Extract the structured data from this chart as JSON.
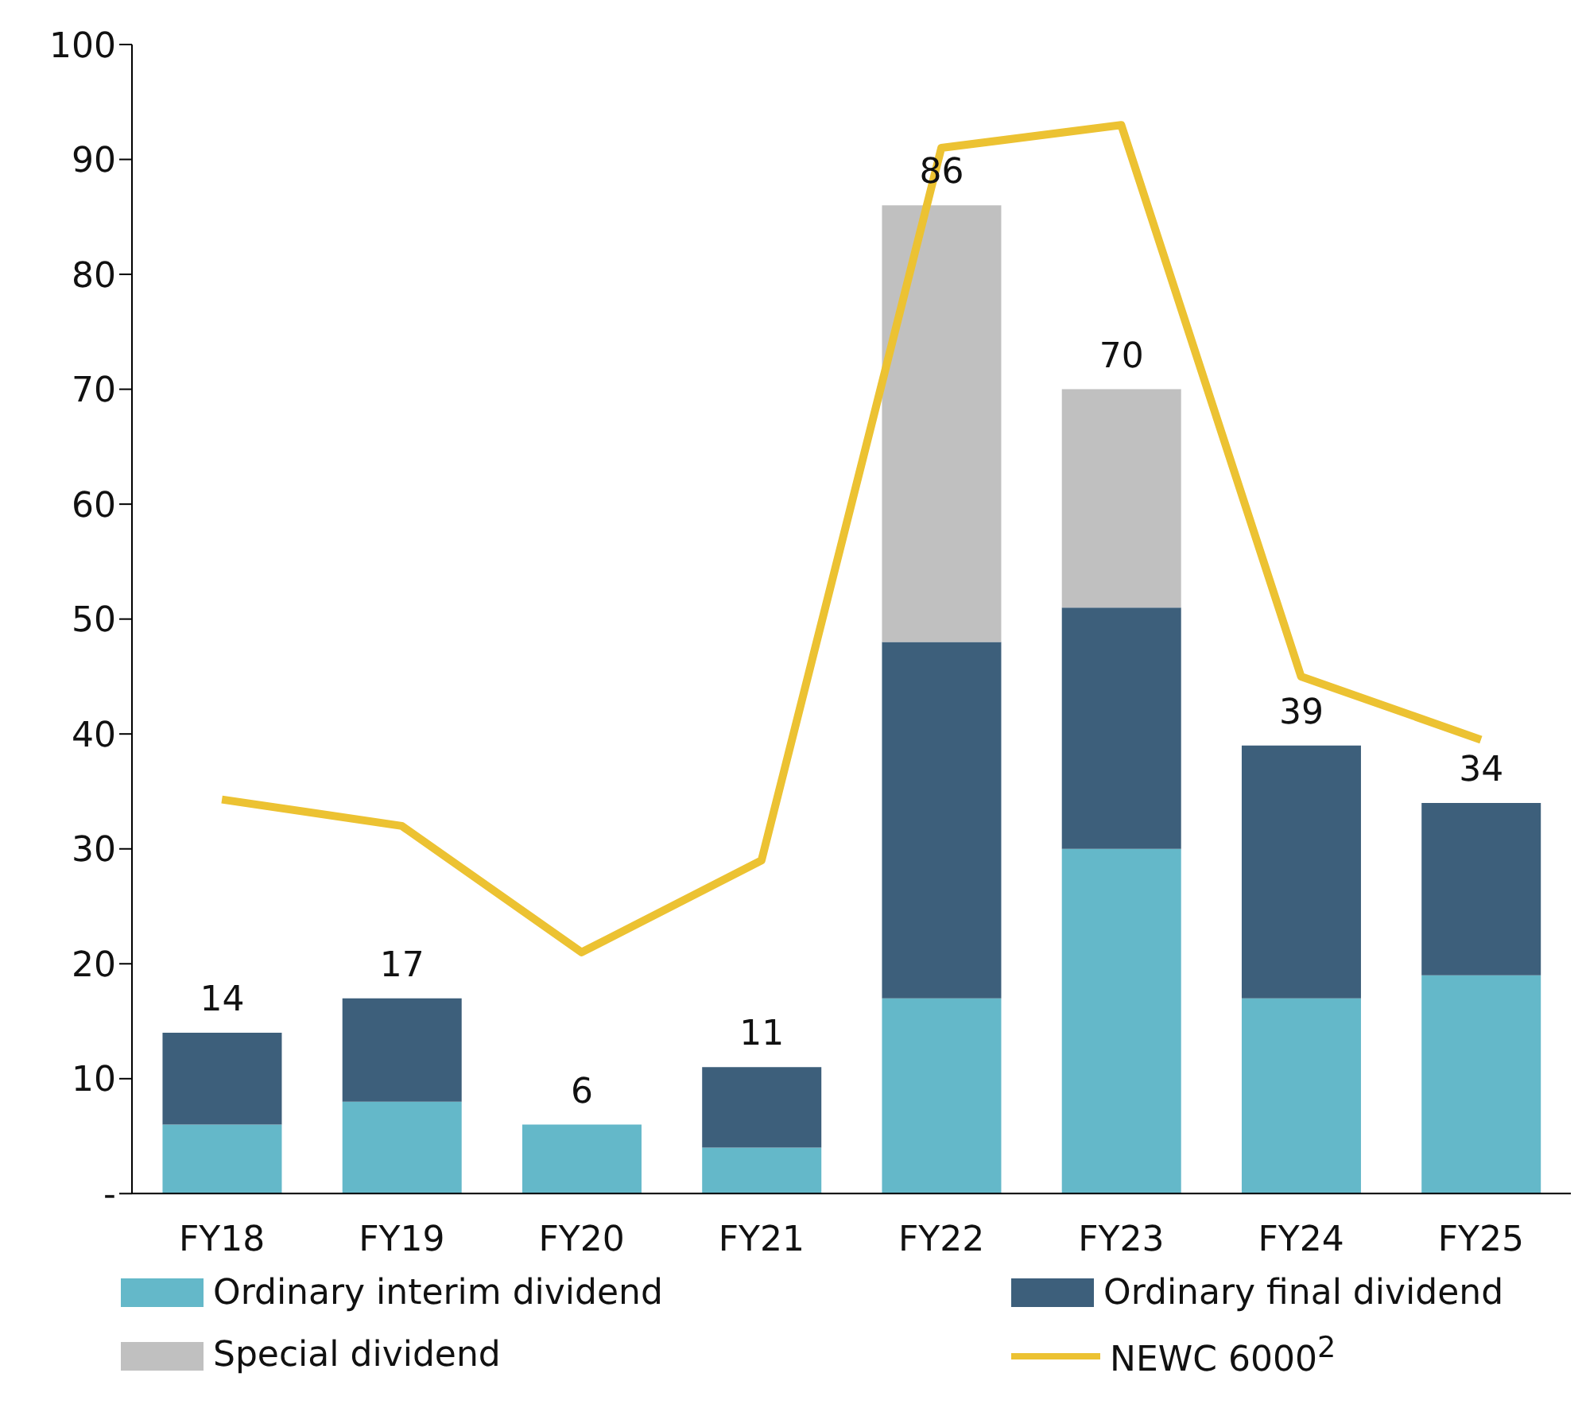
{
  "chart_data": {
    "type": "bar",
    "stacked": true,
    "categories": [
      "FY18",
      "FY19",
      "FY20",
      "FY21",
      "FY22",
      "FY23",
      "FY24",
      "FY25"
    ],
    "series": [
      {
        "name": "Ordinary interim dividend",
        "color": "#64b8c9",
        "values": [
          6,
          8,
          6,
          4,
          17,
          30,
          17,
          19
        ]
      },
      {
        "name": "Ordinary final dividend",
        "color": "#3d5f7b",
        "values": [
          8,
          9,
          null,
          7,
          31,
          21,
          22,
          15
        ]
      },
      {
        "name": "Special dividend",
        "color": "#c0c0c0",
        "values": [
          null,
          null,
          null,
          null,
          38,
          19,
          null,
          null
        ]
      },
      {
        "name": "NEWC 6000$^{2}$",
        "type": "line",
        "color": "#ecc232",
        "values": [
          34.3,
          32,
          21,
          29,
          91,
          93,
          45,
          39.5
        ]
      }
    ],
    "totals": [
      "14",
      "17",
      "6",
      "11",
      "86",
      "70",
      "39",
      "34"
    ],
    "ylim": [
      0,
      100
    ],
    "yticks": [
      {
        "value": 0,
        "label": "-"
      },
      10,
      20,
      30,
      40,
      50,
      60,
      70,
      80,
      90,
      100
    ],
    "grid": false,
    "legend": "bottom",
    "marker": "none",
    "line_style": "solid"
  }
}
